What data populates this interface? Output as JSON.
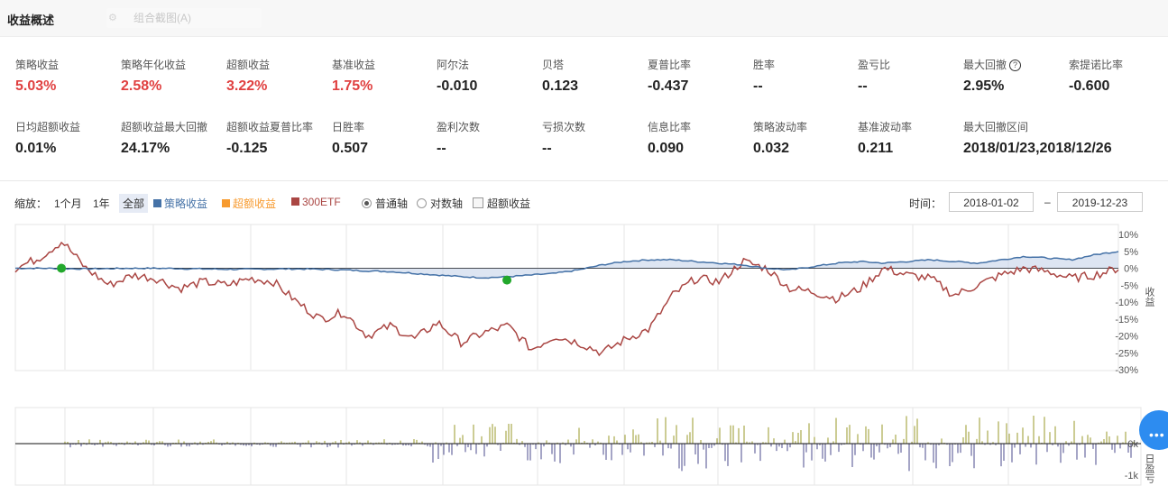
{
  "header": {
    "title": "收益概述",
    "ghost_tab": "组合截图(A)"
  },
  "metrics_row1": [
    {
      "label": "策略收益",
      "value": "5.03%",
      "color": "red"
    },
    {
      "label": "策略年化收益",
      "value": "2.58%",
      "color": "red"
    },
    {
      "label": "超额收益",
      "value": "3.22%",
      "color": "red"
    },
    {
      "label": "基准收益",
      "value": "1.75%",
      "color": "red"
    },
    {
      "label": "阿尔法",
      "value": "-0.010",
      "color": "black"
    },
    {
      "label": "贝塔",
      "value": "0.123",
      "color": "black"
    },
    {
      "label": "夏普比率",
      "value": "-0.437",
      "color": "black"
    },
    {
      "label": "胜率",
      "value": "--",
      "color": "black"
    },
    {
      "label": "盈亏比",
      "value": "--",
      "color": "black"
    },
    {
      "label": "最大回撤",
      "value": "2.95%",
      "color": "black",
      "help": "?"
    },
    {
      "label": "索提诺比率",
      "value": "-0.600",
      "color": "black"
    }
  ],
  "metrics_row2": [
    {
      "label": "日均超额收益",
      "value": "0.01%"
    },
    {
      "label": "超额收益最大回撤",
      "value": "24.17%"
    },
    {
      "label": "超额收益夏普比率",
      "value": "-0.125"
    },
    {
      "label": "日胜率",
      "value": "0.507"
    },
    {
      "label": "盈利次数",
      "value": "--"
    },
    {
      "label": "亏损次数",
      "value": "--"
    },
    {
      "label": "信息比率",
      "value": "0.090"
    },
    {
      "label": "策略波动率",
      "value": "0.032"
    },
    {
      "label": "基准波动率",
      "value": "0.211"
    },
    {
      "label": "最大回撤区间",
      "value": "2018/01/23,2018/12/26"
    }
  ],
  "controls": {
    "zoom_label": "缩放：",
    "zoom_options": [
      "1个月",
      "1年",
      "全部"
    ],
    "legend": [
      {
        "name": "策略收益",
        "color": "#4572a7"
      },
      {
        "name": "超额收益",
        "color": "#f79a2e"
      },
      {
        "name": "300ETF",
        "color": "#aa4643"
      }
    ],
    "axis_linear": "普通轴",
    "axis_log": "对数轴",
    "excess_checkbox": "超额收益",
    "time_label": "时间：",
    "date_from": "2018-01-02",
    "date_sep": "–",
    "date_to": "2019-12-23"
  },
  "chart_data": [
    {
      "type": "line",
      "y_axis_label": "收益",
      "y_ticks": [
        "10%",
        "5%",
        "0%",
        "-5%",
        "-10%",
        "-15%",
        "-20%",
        "-25%",
        "-30%"
      ],
      "ylim": [
        -30,
        10
      ],
      "x_range": [
        "2018-01-02",
        "2019-12-23"
      ],
      "series": [
        {
          "name": "策略收益",
          "color": "#4572a7",
          "values": [
            0,
            0,
            -0.1,
            -0.2,
            -0.1,
            0,
            0,
            -0.1,
            -0.2,
            -0.3,
            -0.3,
            -0.2,
            -0.2,
            -0.3,
            -0.5,
            -0.8,
            -1,
            -1.5,
            -2,
            -2.5,
            -2.8,
            -2.5,
            -2,
            -1.5,
            -0.5,
            1,
            2,
            2.5,
            2.5,
            2,
            1.5,
            1,
            0,
            -0.5,
            0.5,
            1.5,
            2,
            1.5,
            2,
            2.5,
            2,
            1.5,
            2.5,
            3.5,
            3,
            2.5,
            4,
            5
          ]
        },
        {
          "name": "300ETF",
          "color": "#aa4643",
          "values": [
            0,
            3,
            8,
            0,
            -5,
            -2,
            -3,
            -6,
            -4,
            -5,
            -3,
            -4,
            -10,
            -15,
            -13,
            -20,
            -17,
            -21,
            -16,
            -22,
            -19,
            -17,
            -24,
            -20,
            -22,
            -25,
            -21,
            -18,
            -8,
            -3,
            -4,
            2,
            0,
            -6,
            -7,
            -9,
            -6,
            0,
            -2,
            -3,
            -8,
            -5,
            -2,
            0,
            -1,
            -3,
            -2,
            0
          ]
        }
      ],
      "markers": [
        {
          "x_index": 2,
          "value": 0
        },
        {
          "x_index": 21,
          "value": -3.5
        }
      ]
    },
    {
      "type": "bar",
      "y_axis_label": "日盈亏",
      "y_ticks": [
        "0k",
        "-1k"
      ],
      "description_values": "daily profit/loss bars, mostly small, larger after mid-2019"
    }
  ]
}
